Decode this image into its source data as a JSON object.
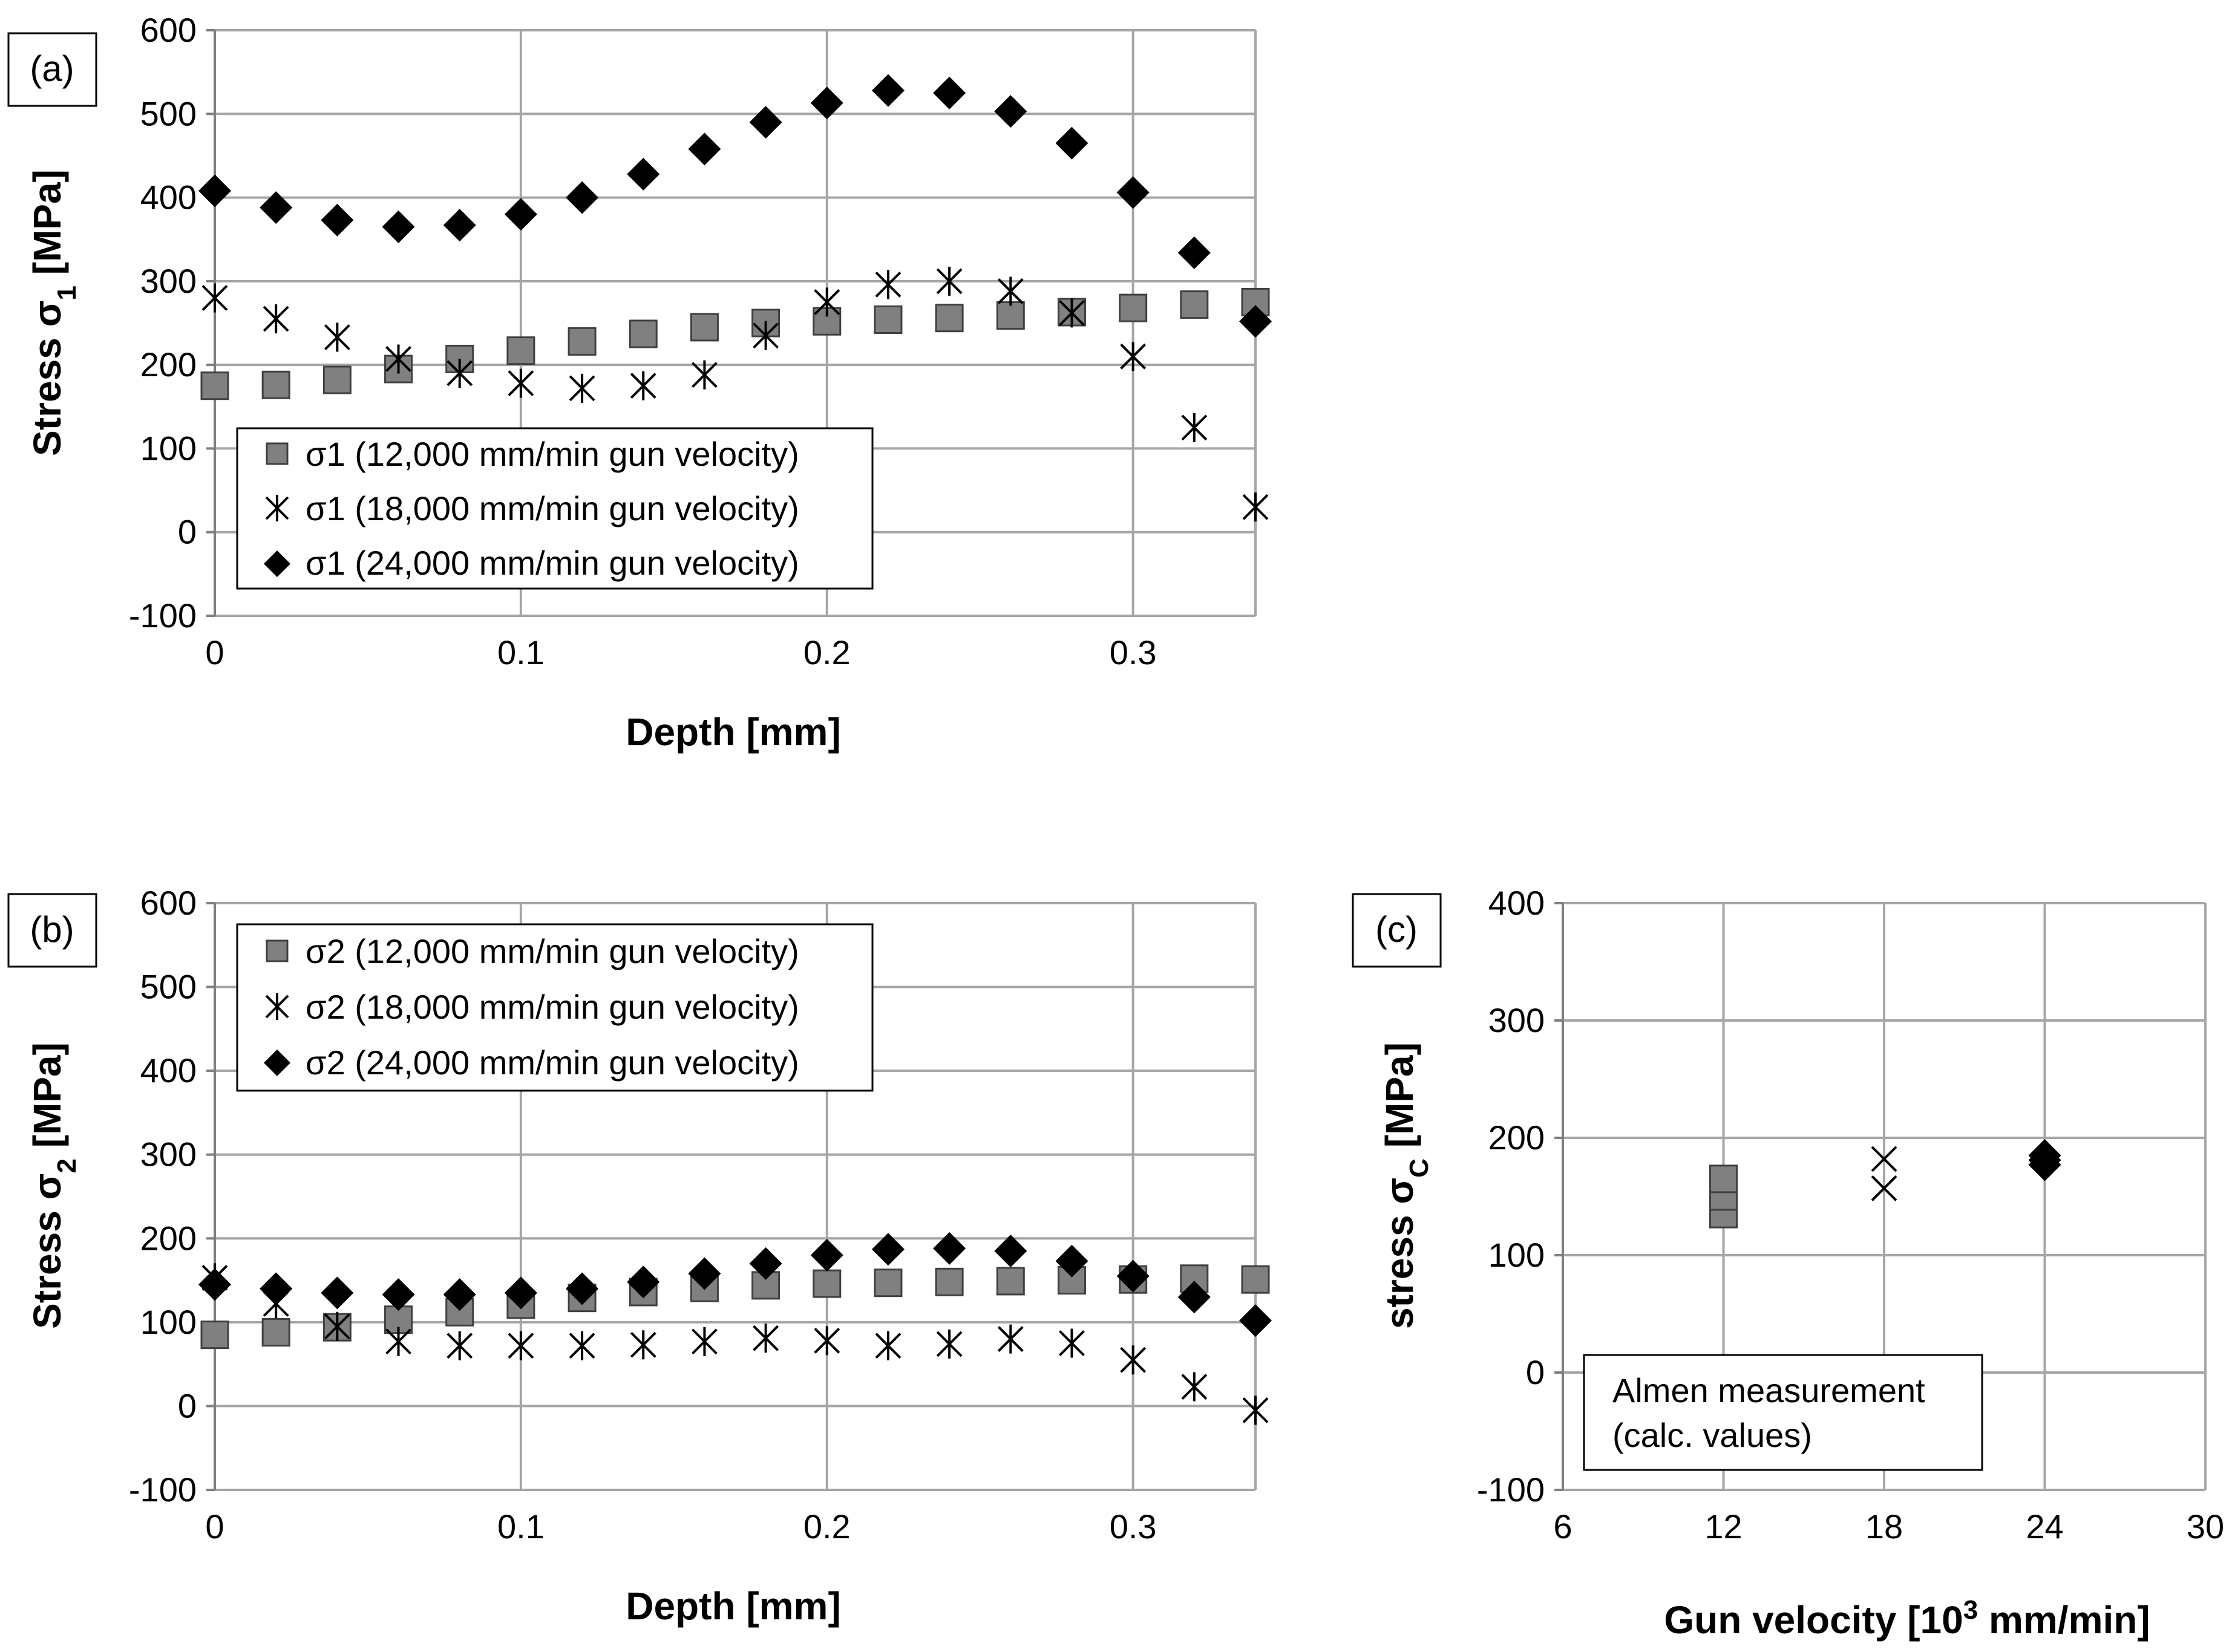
{
  "figure": {
    "panels": [
      {
        "panel_label": "(a)",
        "xlabel": "Depth [mm]",
        "ylabel_main": "Stress σ",
        "ylabel_sub": "1",
        "ylabel_unit": " [MPa]",
        "legend_position": "bottom-left"
      },
      {
        "panel_label": "(b)",
        "xlabel": "Depth [mm]",
        "ylabel_main": "Stress σ",
        "ylabel_sub": "2",
        "ylabel_unit": " [MPa]",
        "legend_position": "top-left"
      },
      {
        "panel_label": "(c)",
        "xlabel_main": "Gun velocity [10",
        "xlabel_sup": "3",
        "xlabel_unit": " mm/min]",
        "ylabel_main": "stress σ",
        "ylabel_sub": "C",
        "ylabel_unit": " [MPa]",
        "legend_position": "bottom-left"
      }
    ]
  },
  "chart_data": [
    {
      "type": "scatter",
      "xlim": [
        0,
        0.34
      ],
      "ylim": [
        -100,
        600
      ],
      "xticks": [
        "0",
        "0.1",
        "0.2",
        "0.3"
      ],
      "xtick_values": [
        0,
        0.1,
        0.2,
        0.3
      ],
      "yticks": [
        "600",
        "500",
        "400",
        "300",
        "200",
        "100",
        "0",
        "-100"
      ],
      "ytick_values": [
        600,
        500,
        400,
        300,
        200,
        100,
        0,
        -100
      ],
      "grid": true,
      "x": [
        0,
        0.02,
        0.04,
        0.06,
        0.08,
        0.1,
        0.12,
        0.14,
        0.16,
        0.18,
        0.2,
        0.22,
        0.24,
        0.26,
        0.28,
        0.3,
        0.32,
        0.34
      ],
      "series": [
        {
          "name": "σ1 (12,000 mm/min gun velocity)",
          "marker": "square",
          "color": "#808080",
          "values": [
            175,
            176,
            182,
            195,
            207,
            217,
            228,
            237,
            245,
            250,
            252,
            254,
            256,
            259,
            263,
            268,
            272,
            275
          ]
        },
        {
          "name": "σ1 (18,000 mm/min gun velocity)",
          "marker": "star",
          "color": "#000000",
          "values": [
            280,
            255,
            233,
            207,
            190,
            178,
            172,
            175,
            188,
            235,
            275,
            296,
            300,
            288,
            262,
            210,
            125,
            30
          ]
        },
        {
          "name": "σ1 (24,000 mm/min gun velocity)",
          "marker": "diamond",
          "color": "#000000",
          "values": [
            408,
            388,
            373,
            365,
            367,
            380,
            400,
            428,
            458,
            490,
            513,
            528,
            525,
            503,
            465,
            406,
            334,
            252
          ]
        }
      ]
    },
    {
      "type": "scatter",
      "xlim": [
        0,
        0.34
      ],
      "ylim": [
        -100,
        600
      ],
      "xticks": [
        "0",
        "0.1",
        "0.2",
        "0.3"
      ],
      "xtick_values": [
        0,
        0.1,
        0.2,
        0.3
      ],
      "yticks": [
        "600",
        "500",
        "400",
        "300",
        "200",
        "100",
        "0",
        "-100"
      ],
      "ytick_values": [
        600,
        500,
        400,
        300,
        200,
        100,
        0,
        -100
      ],
      "grid": true,
      "x": [
        0,
        0.02,
        0.04,
        0.06,
        0.08,
        0.1,
        0.12,
        0.14,
        0.16,
        0.18,
        0.2,
        0.22,
        0.24,
        0.26,
        0.28,
        0.3,
        0.32,
        0.34
      ],
      "series": [
        {
          "name": "σ2 (12,000 mm/min gun velocity)",
          "marker": "square",
          "color": "#808080",
          "values": [
            85,
            88,
            94,
            103,
            112,
            121,
            129,
            136,
            141,
            144,
            146,
            147,
            148,
            149,
            150,
            151,
            152,
            151
          ]
        },
        {
          "name": "σ2 (18,000 mm/min gun velocity)",
          "marker": "star",
          "color": "#000000",
          "values": [
            153,
            122,
            95,
            77,
            72,
            72,
            72,
            73,
            77,
            81,
            78,
            72,
            74,
            80,
            75,
            55,
            23,
            -5
          ]
        },
        {
          "name": "σ2 (24,000 mm/min gun velocity)",
          "marker": "diamond",
          "color": "#000000",
          "values": [
            145,
            140,
            135,
            133,
            133,
            135,
            140,
            148,
            158,
            170,
            180,
            187,
            188,
            185,
            173,
            155,
            130,
            102
          ]
        }
      ]
    },
    {
      "type": "scatter",
      "xlim": [
        6,
        30
      ],
      "ylim": [
        -100,
        400
      ],
      "xticks": [
        "6",
        "12",
        "18",
        "24",
        "30"
      ],
      "xtick_values": [
        6,
        12,
        18,
        24,
        30
      ],
      "yticks": [
        "400",
        "300",
        "200",
        "100",
        "0",
        "-100"
      ],
      "ytick_values": [
        400,
        300,
        200,
        100,
        0,
        -100
      ],
      "grid": true,
      "legend": [
        "Almen measurement",
        "(calc. values)"
      ],
      "series": [
        {
          "marker": "square",
          "color": "#808080",
          "x": [
            12,
            12,
            12
          ],
          "values": [
            135,
            150,
            165
          ]
        },
        {
          "marker": "cross",
          "color": "#000000",
          "x": [
            18,
            18
          ],
          "values": [
            157,
            182
          ]
        },
        {
          "marker": "diamond",
          "color": "#000000",
          "x": [
            24,
            24,
            24
          ],
          "values": [
            177,
            181,
            185
          ]
        }
      ]
    }
  ]
}
